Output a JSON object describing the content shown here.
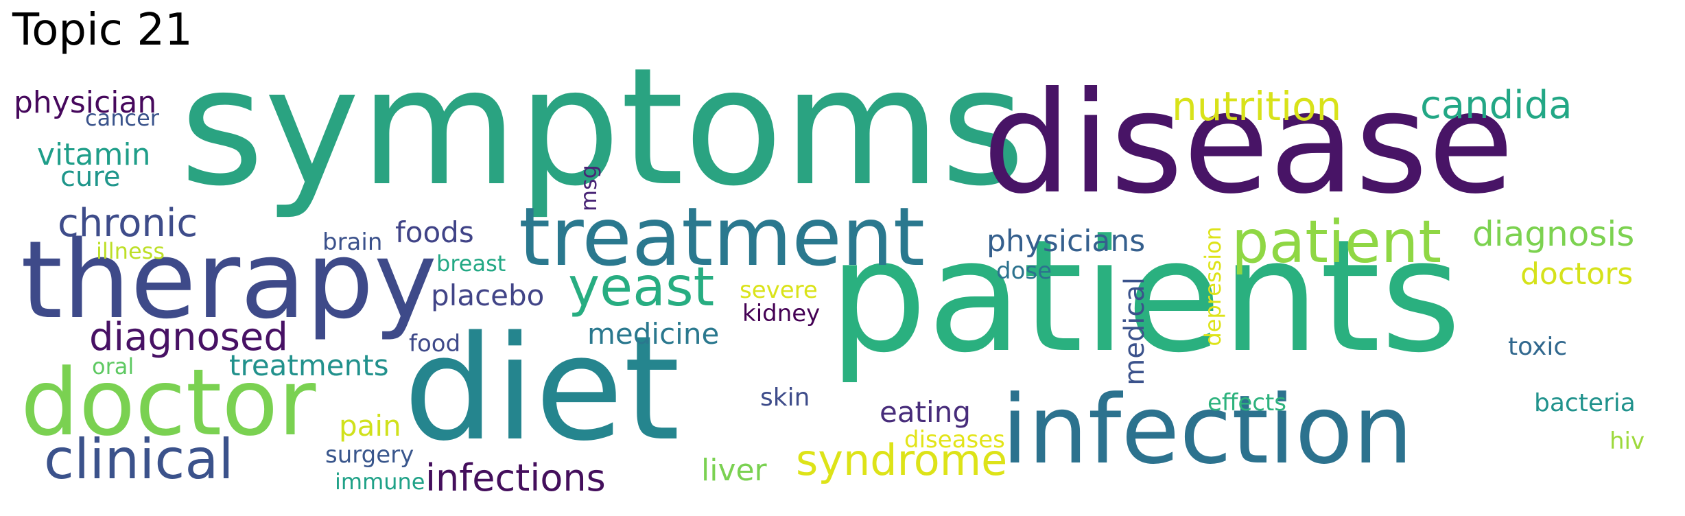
{
  "title": "Topic 21",
  "words": [
    {
      "text": "symptoms",
      "color": "#2aa381",
      "rotated": false
    },
    {
      "text": "disease",
      "color": "#481466",
      "rotated": false
    },
    {
      "text": "patients",
      "color": "#2ab07f",
      "rotated": false
    },
    {
      "text": "diet",
      "color": "#25858e",
      "rotated": false
    },
    {
      "text": "therapy",
      "color": "#3e4a89",
      "rotated": false
    },
    {
      "text": "treatment",
      "color": "#2a788e",
      "rotated": false
    },
    {
      "text": "infection",
      "color": "#2c728e",
      "rotated": false
    },
    {
      "text": "doctor",
      "color": "#7ad151",
      "rotated": false
    },
    {
      "text": "clinical",
      "color": "#3b528b",
      "rotated": false
    },
    {
      "text": "patient",
      "color": "#8fd744",
      "rotated": false
    },
    {
      "text": "yeast",
      "color": "#27ad81",
      "rotated": false
    },
    {
      "text": "syndrome",
      "color": "#dde318",
      "rotated": false
    },
    {
      "text": "infections",
      "color": "#440f5c",
      "rotated": false
    },
    {
      "text": "nutrition",
      "color": "#d8e219",
      "rotated": false
    },
    {
      "text": "candida",
      "color": "#22a785",
      "rotated": false
    },
    {
      "text": "diagnosis",
      "color": "#7cd250",
      "rotated": false
    },
    {
      "text": "diagnosed",
      "color": "#471164",
      "rotated": false
    },
    {
      "text": "chronic",
      "color": "#3e4c8a",
      "rotated": false
    },
    {
      "text": "physician",
      "color": "#46085c",
      "rotated": false
    },
    {
      "text": "vitamin",
      "color": "#1f9e89",
      "rotated": false
    },
    {
      "text": "cure",
      "color": "#1f968b",
      "rotated": false
    },
    {
      "text": "cancer",
      "color": "#3a538b",
      "rotated": false
    },
    {
      "text": "illness",
      "color": "#bddf26",
      "rotated": false
    },
    {
      "text": "foods",
      "color": "#404387",
      "rotated": false
    },
    {
      "text": "brain",
      "color": "#3b518b",
      "rotated": false
    },
    {
      "text": "breast",
      "color": "#22a884",
      "rotated": false
    },
    {
      "text": "placebo",
      "color": "#414487",
      "rotated": false
    },
    {
      "text": "treatments",
      "color": "#21918c",
      "rotated": false
    },
    {
      "text": "medicine",
      "color": "#2a788e",
      "rotated": false
    },
    {
      "text": "food",
      "color": "#3e4989",
      "rotated": false
    },
    {
      "text": "oral",
      "color": "#5ec962",
      "rotated": false
    },
    {
      "text": "pain",
      "color": "#d0e11c",
      "rotated": false
    },
    {
      "text": "surgery",
      "color": "#39568c",
      "rotated": false
    },
    {
      "text": "immune",
      "color": "#1fa187",
      "rotated": false
    },
    {
      "text": "msg",
      "color": "#482475",
      "rotated": true
    },
    {
      "text": "physicians",
      "color": "#355f8d",
      "rotated": false
    },
    {
      "text": "dose",
      "color": "#2c728e",
      "rotated": false
    },
    {
      "text": "severe",
      "color": "#dae319",
      "rotated": false
    },
    {
      "text": "kidney",
      "color": "#440154",
      "rotated": false
    },
    {
      "text": "medical",
      "color": "#3b528b",
      "rotated": true
    },
    {
      "text": "depression",
      "color": "#dde318",
      "rotated": true
    },
    {
      "text": "eating",
      "color": "#472c7a",
      "rotated": false
    },
    {
      "text": "skin",
      "color": "#3e4c8a",
      "rotated": false
    },
    {
      "text": "liver",
      "color": "#7ad151",
      "rotated": false
    },
    {
      "text": "diseases",
      "color": "#e2e418",
      "rotated": false
    },
    {
      "text": "effects",
      "color": "#2db27d",
      "rotated": false
    },
    {
      "text": "doctors",
      "color": "#d5e21a",
      "rotated": false
    },
    {
      "text": "toxic",
      "color": "#31688e",
      "rotated": false
    },
    {
      "text": "bacteria",
      "color": "#20928c",
      "rotated": false
    },
    {
      "text": "hiv",
      "color": "#9dd93b",
      "rotated": false
    }
  ]
}
